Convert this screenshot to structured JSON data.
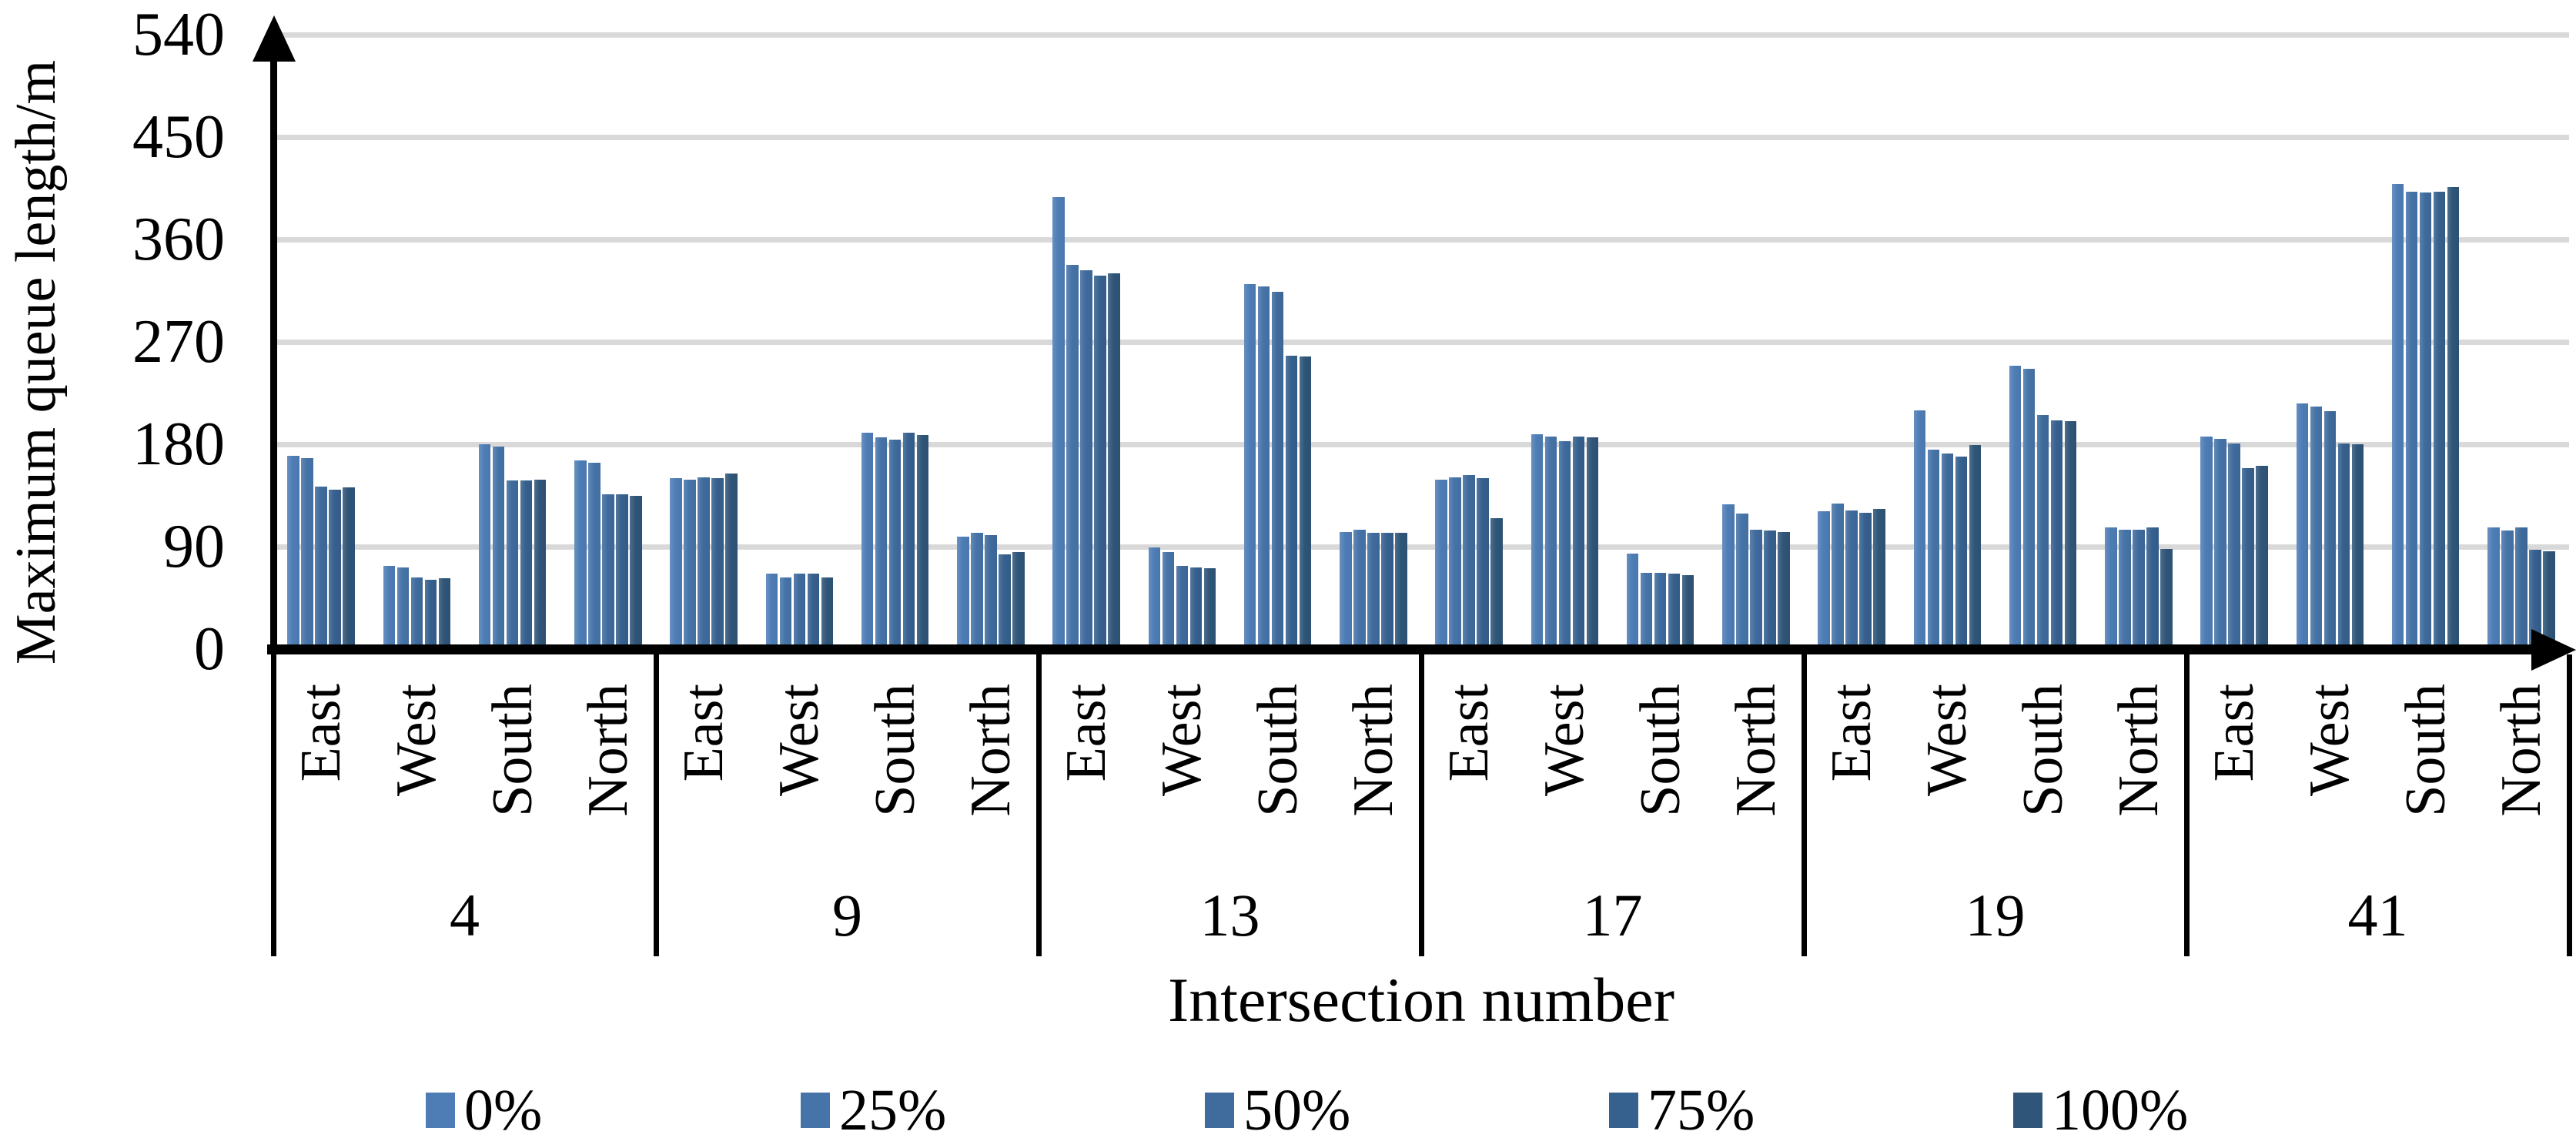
{
  "chart_data": {
    "type": "bar",
    "title": "",
    "xlabel": "Intersection number",
    "ylabel": "Maximum queue length/m",
    "ylim": [
      0,
      540
    ],
    "yticks": [
      0,
      90,
      180,
      270,
      360,
      450,
      540
    ],
    "grid": true,
    "legend_position": "bottom",
    "series_names": [
      "0%",
      "25%",
      "50%",
      "75%",
      "100%"
    ],
    "series_colors": [
      "#4E7DB6",
      "#4674A8",
      "#3F6B9D",
      "#36608E",
      "#2F5578"
    ],
    "gridline_color": "#D9D9D9",
    "axis_color": "#000000",
    "directions": [
      "East",
      "West",
      "South",
      "North"
    ],
    "intersections": [
      {
        "number": "4",
        "values": [
          [
            170,
            168,
            143,
            140,
            142
          ],
          [
            73,
            72,
            63,
            61,
            62
          ],
          [
            180,
            178,
            148,
            148,
            149
          ],
          [
            166,
            164,
            136,
            136,
            135
          ]
        ]
      },
      {
        "number": "9",
        "values": [
          [
            150,
            149,
            151,
            150,
            154
          ],
          [
            66,
            63,
            66,
            66,
            63
          ],
          [
            190,
            186,
            184,
            190,
            188
          ],
          [
            99,
            102,
            100,
            83,
            85
          ]
        ]
      },
      {
        "number": "13",
        "values": [
          [
            397,
            338,
            333,
            328,
            330
          ],
          [
            89,
            85,
            73,
            72,
            71
          ],
          [
            321,
            319,
            314,
            258,
            257
          ],
          [
            103,
            105,
            102,
            102,
            102
          ]
        ]
      },
      {
        "number": "17",
        "values": [
          [
            149,
            151,
            153,
            150,
            115
          ],
          [
            189,
            187,
            183,
            187,
            186
          ],
          [
            84,
            67,
            67,
            66,
            65
          ],
          [
            127,
            119,
            105,
            104,
            103
          ]
        ]
      },
      {
        "number": "19",
        "values": [
          [
            121,
            128,
            122,
            120,
            123
          ],
          [
            210,
            175,
            172,
            169,
            179
          ],
          [
            249,
            246,
            206,
            201,
            200
          ],
          [
            107,
            105,
            105,
            107,
            88
          ]
        ]
      },
      {
        "number": "41",
        "values": [
          [
            187,
            185,
            181,
            159,
            161
          ],
          [
            216,
            213,
            209,
            181,
            180
          ],
          [
            409,
            402,
            401,
            402,
            406
          ],
          [
            107,
            104,
            107,
            87,
            86
          ]
        ]
      }
    ]
  },
  "legend": {
    "items": [
      {
        "label": "0%",
        "color": "#4E7DB6"
      },
      {
        "label": "25%",
        "color": "#4674A8"
      },
      {
        "label": "50%",
        "color": "#3F6B9D"
      },
      {
        "label": "75%",
        "color": "#36608E"
      },
      {
        "label": "100%",
        "color": "#2F5578"
      }
    ]
  }
}
